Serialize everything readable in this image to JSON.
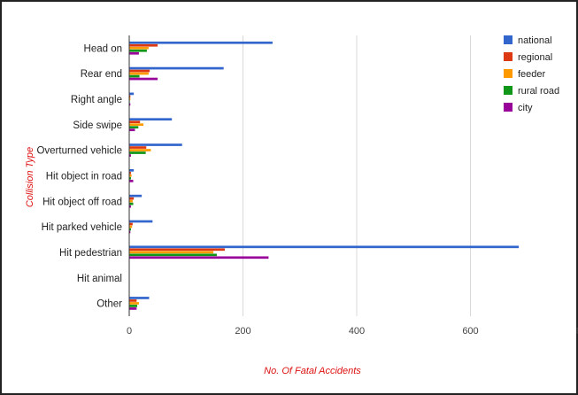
{
  "chart_data": {
    "type": "bar",
    "orientation": "horizontal",
    "title": "",
    "xlabel": "No. Of Fatal Accidents",
    "ylabel": "Collision Type",
    "xlim": [
      0,
      800
    ],
    "xticks": [
      0,
      200,
      400,
      600,
      800
    ],
    "grid": true,
    "legend_position": "top-right",
    "categories": [
      "Head on",
      "Rear end",
      "Right angle",
      "Side swipe",
      "Overturned vehicle",
      "Hit object in road",
      "Hit object off road",
      "Hit parked vehicle",
      "Hit pedestrian",
      "Hit animal",
      "Other"
    ],
    "series": [
      {
        "name": "national",
        "color": "#3366cc",
        "values": [
          252,
          166,
          8,
          75,
          93,
          8,
          22,
          41,
          685,
          0,
          35
        ]
      },
      {
        "name": "regional",
        "color": "#dc3912",
        "values": [
          50,
          36,
          2,
          19,
          30,
          3,
          8,
          6,
          168,
          0,
          13
        ]
      },
      {
        "name": "feeder",
        "color": "#ff9900",
        "values": [
          34,
          34,
          2,
          25,
          38,
          4,
          6,
          5,
          148,
          0,
          17
        ]
      },
      {
        "name": "rural road",
        "color": "#109618",
        "values": [
          31,
          18,
          1,
          16,
          29,
          3,
          7,
          3,
          154,
          0,
          14
        ]
      },
      {
        "name": "city",
        "color": "#990099",
        "values": [
          17,
          50,
          2,
          10,
          3,
          7,
          3,
          2,
          245,
          0,
          13
        ]
      }
    ]
  }
}
